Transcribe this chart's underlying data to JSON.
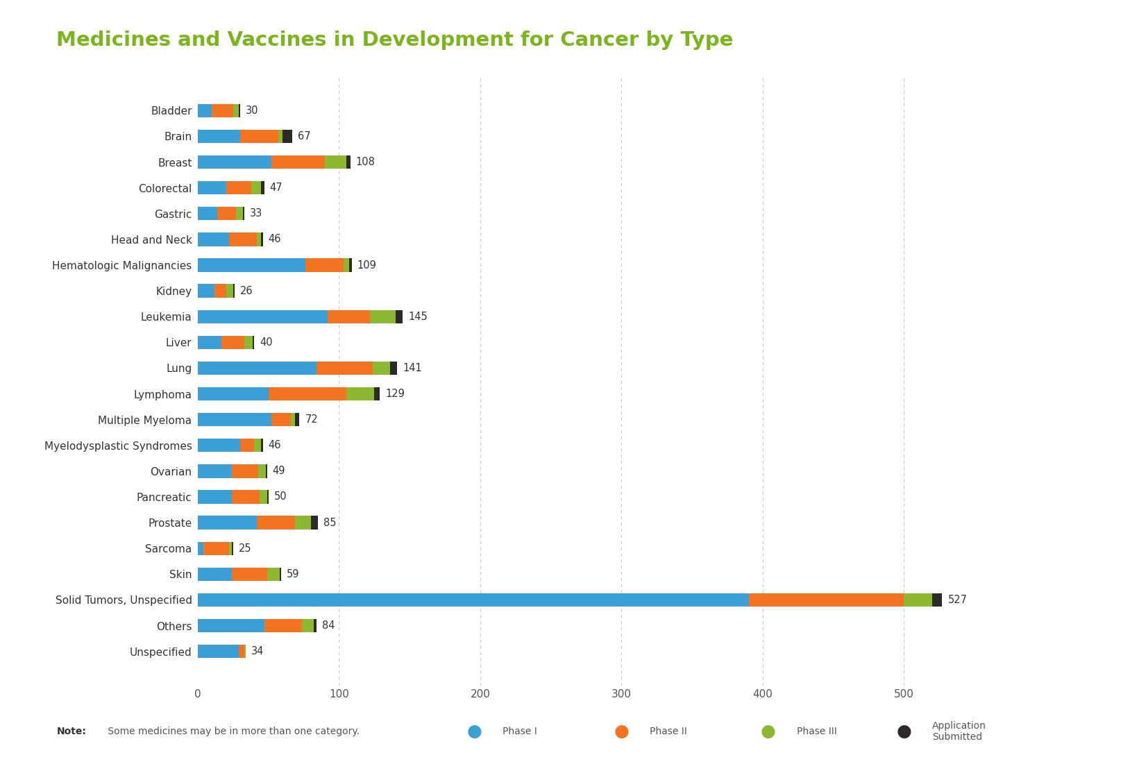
{
  "title": "Medicines and Vaccines in Development for Cancer by Type",
  "title_color": "#7ab51d",
  "categories": [
    "Bladder",
    "Brain",
    "Breast",
    "Colorectal",
    "Gastric",
    "Head and Neck",
    "Hematologic Malignancies",
    "Kidney",
    "Leukemia",
    "Liver",
    "Lung",
    "Lymphoma",
    "Multiple Myeloma",
    "Myelodysplastic Syndromes",
    "Ovarian",
    "Pancreatic",
    "Prostate",
    "Sarcoma",
    "Skin",
    "Solid Tumors, Unspecified",
    "Others",
    "Unspecified"
  ],
  "totals": [
    30,
    67,
    108,
    47,
    33,
    46,
    109,
    26,
    145,
    40,
    141,
    129,
    72,
    46,
    49,
    50,
    85,
    25,
    59,
    527,
    84,
    34
  ],
  "phase1": [
    10,
    30,
    52,
    20,
    14,
    22,
    76,
    12,
    92,
    17,
    84,
    50,
    52,
    30,
    24,
    24,
    42,
    4,
    24,
    390,
    47,
    29
  ],
  "phase2": [
    15,
    27,
    38,
    18,
    13,
    20,
    27,
    8,
    30,
    16,
    40,
    55,
    14,
    10,
    19,
    20,
    27,
    18,
    25,
    110,
    27,
    4
  ],
  "phase3": [
    4,
    3,
    15,
    7,
    5,
    3,
    4,
    5,
    18,
    6,
    12,
    20,
    3,
    5,
    5,
    5,
    11,
    2,
    9,
    20,
    8,
    1
  ],
  "app_submitted": [
    1,
    7,
    3,
    2,
    1,
    1,
    2,
    1,
    5,
    1,
    5,
    4,
    3,
    1,
    1,
    1,
    5,
    1,
    1,
    7,
    2,
    0
  ],
  "phase1_color": "#3a9fd6",
  "phase2_color": "#f47321",
  "phase3_color": "#8db832",
  "app_color": "#2d2926",
  "background_color": "#ffffff",
  "bar_height": 0.52,
  "note_bold": "Note:",
  "note_rest": " Some medicines may be in more than one category.",
  "xlim": [
    0,
    560
  ],
  "xticks": [
    0,
    100,
    200,
    300,
    400,
    500
  ],
  "grid_color": "#c8c8c8"
}
